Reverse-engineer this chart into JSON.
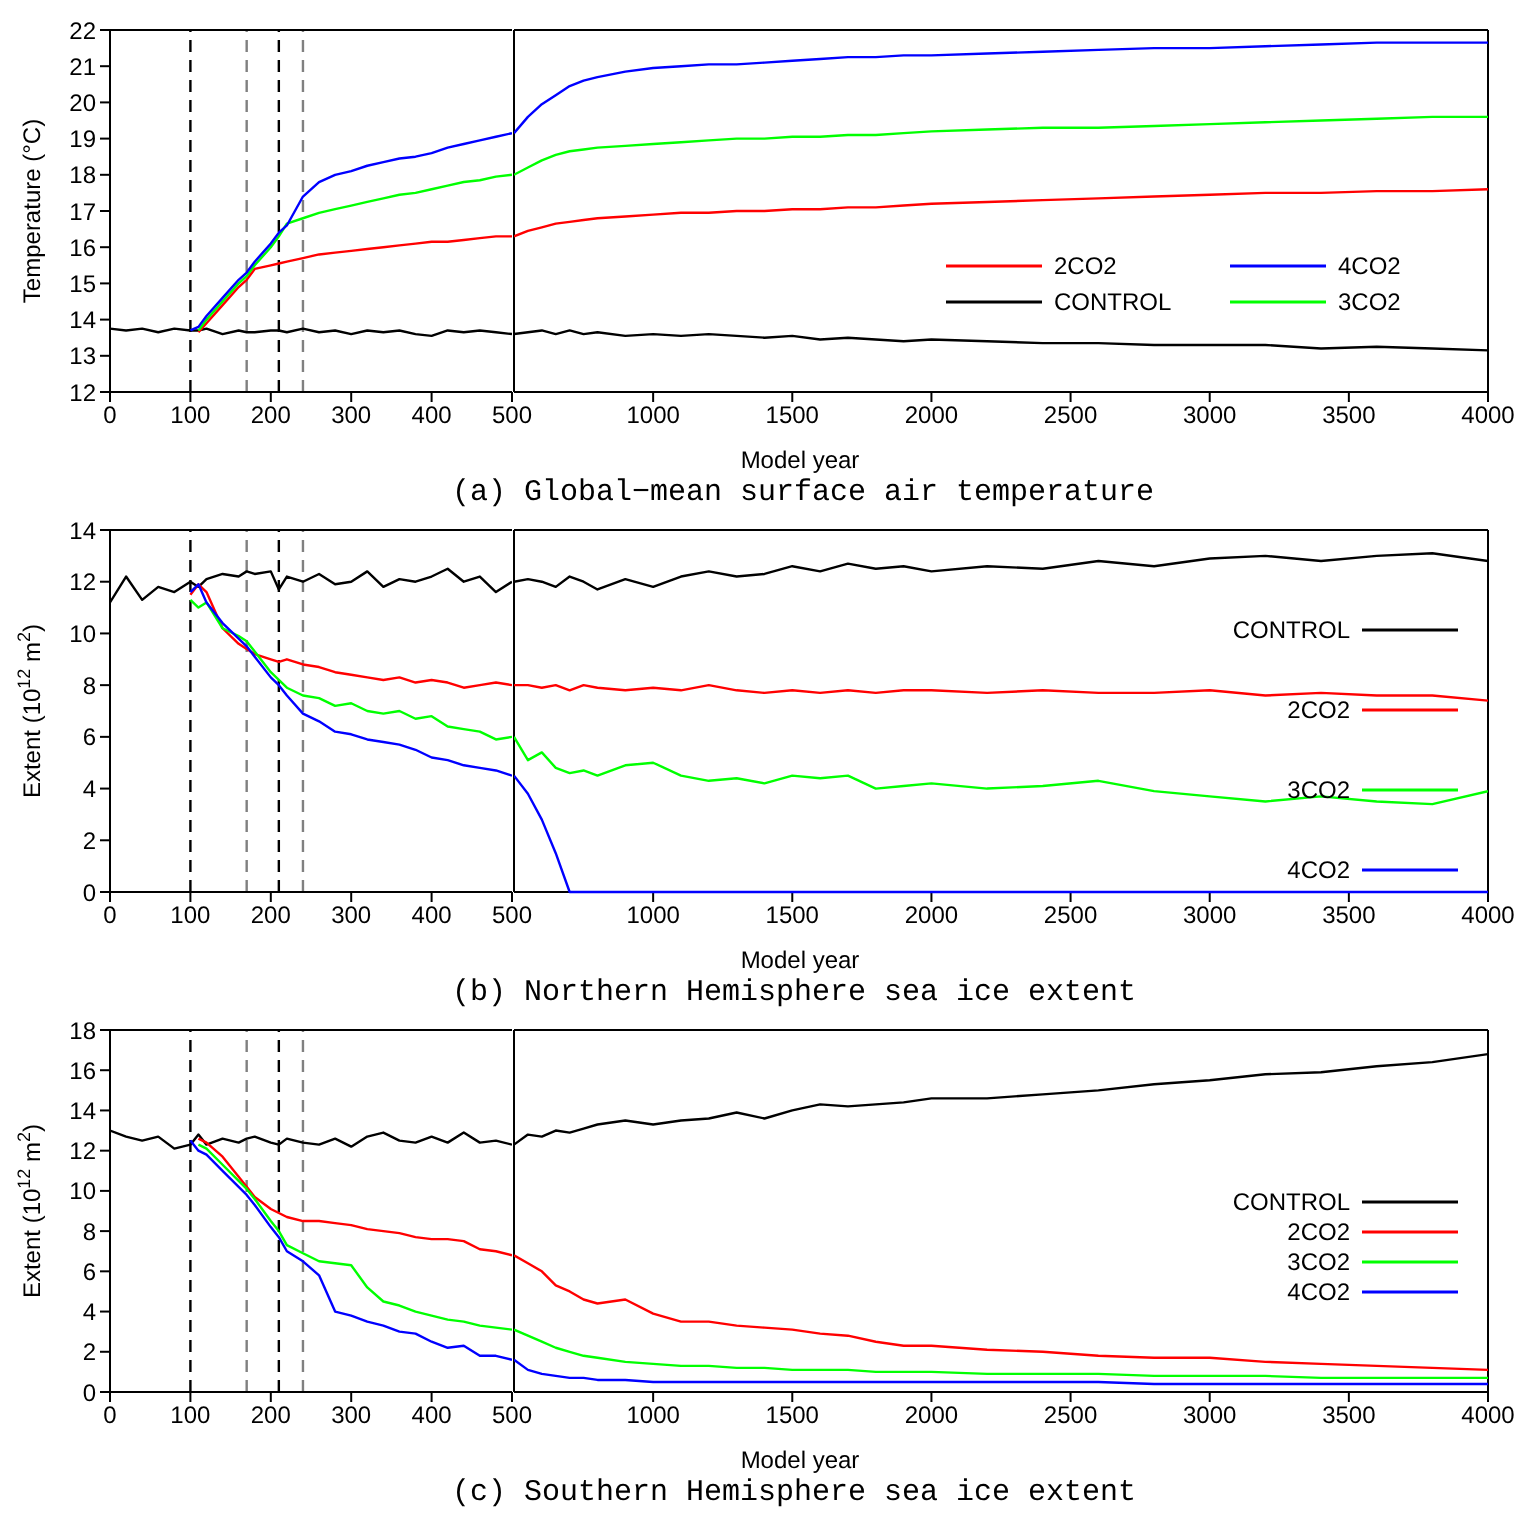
{
  "chart_data": [
    {
      "type": "line",
      "ylabel": "Temperature (°C)",
      "x": [
        0,
        20,
        40,
        60,
        80,
        100,
        110,
        120,
        140,
        160,
        170,
        180,
        200,
        210,
        220,
        240,
        260,
        280,
        300,
        320,
        340,
        360,
        380,
        400,
        420,
        440,
        460,
        480,
        500
      ],
      "xlim": [
        0,
        500
      ],
      "xticks": [
        0,
        100,
        200,
        300,
        400,
        500
      ],
      "ylim": [
        12,
        22
      ],
      "yticks": [
        12,
        13,
        14,
        15,
        16,
        17,
        18,
        19,
        20,
        21,
        22
      ],
      "ref_lines": [
        {
          "axis": "x",
          "value": 100,
          "color": "#000000",
          "line_style": "dashed"
        },
        {
          "axis": "x",
          "value": 170,
          "color": "#808080",
          "line_style": "dashed"
        },
        {
          "axis": "x",
          "value": 210,
          "color": "#000000",
          "line_style": "dashed"
        },
        {
          "axis": "x",
          "value": 240,
          "color": "#808080",
          "line_style": "dashed"
        }
      ],
      "series": [
        {
          "color": "#000000",
          "values": [
            13.75,
            13.7,
            13.75,
            13.65,
            13.75,
            13.7,
            13.7,
            13.75,
            13.6,
            13.7,
            13.65,
            13.65,
            13.7,
            13.7,
            13.65,
            13.75,
            13.65,
            13.7,
            13.6,
            13.7,
            13.65,
            13.7,
            13.6,
            13.55,
            13.7,
            13.65,
            13.7,
            13.65,
            13.6
          ]
        },
        {
          "color": "#ff0000",
          "values": [
            null,
            null,
            null,
            null,
            null,
            null,
            13.65,
            13.9,
            14.4,
            14.9,
            15.1,
            15.4,
            15.5,
            15.55,
            15.6,
            15.7,
            15.8,
            15.85,
            15.9,
            15.95,
            16.0,
            16.05,
            16.1,
            16.15,
            16.15,
            16.2,
            16.25,
            16.3,
            16.3
          ]
        },
        {
          "color": "#00ff00",
          "values": [
            null,
            null,
            null,
            null,
            null,
            null,
            13.7,
            14.0,
            14.5,
            15.0,
            15.2,
            15.5,
            16.0,
            16.3,
            16.65,
            16.8,
            16.95,
            17.05,
            17.15,
            17.25,
            17.35,
            17.45,
            17.5,
            17.6,
            17.7,
            17.8,
            17.85,
            17.95,
            18.0
          ]
        },
        {
          "color": "#0000ff",
          "values": [
            null,
            null,
            null,
            null,
            null,
            13.7,
            13.8,
            14.1,
            14.6,
            15.1,
            15.3,
            15.6,
            16.1,
            16.4,
            16.6,
            17.4,
            17.8,
            18.0,
            18.1,
            18.25,
            18.35,
            18.45,
            18.5,
            18.6,
            18.75,
            18.85,
            18.95,
            19.05,
            19.15
          ]
        }
      ]
    },
    {
      "type": "line",
      "title": "(a) Global−mean surface air temperature",
      "xlabel": "Model year",
      "legend": "right",
      "tick_labels": "x",
      "x": [
        500,
        550,
        600,
        650,
        700,
        750,
        800,
        900,
        1000,
        1100,
        1200,
        1300,
        1400,
        1500,
        1600,
        1700,
        1800,
        1900,
        2000,
        2200,
        2400,
        2600,
        2800,
        3000,
        3200,
        3400,
        3600,
        3800,
        4000
      ],
      "xlim": [
        500,
        4000
      ],
      "xticks": [
        1000,
        1500,
        2000,
        2500,
        3000,
        3500,
        4000
      ],
      "ylim": [
        12,
        22
      ],
      "yticks": [
        12,
        13,
        14,
        15,
        16,
        17,
        18,
        19,
        20,
        21,
        22
      ],
      "series": [
        {
          "name": "2CO2",
          "color": "#ff0000",
          "values": [
            16.3,
            16.45,
            16.55,
            16.65,
            16.7,
            16.75,
            16.8,
            16.85,
            16.9,
            16.95,
            16.95,
            17.0,
            17.0,
            17.05,
            17.05,
            17.1,
            17.1,
            17.15,
            17.2,
            17.25,
            17.3,
            17.35,
            17.4,
            17.45,
            17.5,
            17.5,
            17.55,
            17.55,
            17.6
          ]
        },
        {
          "name": "4CO2",
          "color": "#0000ff",
          "values": [
            19.15,
            19.6,
            19.95,
            20.2,
            20.45,
            20.6,
            20.7,
            20.85,
            20.95,
            21.0,
            21.05,
            21.05,
            21.1,
            21.15,
            21.2,
            21.25,
            21.25,
            21.3,
            21.3,
            21.35,
            21.4,
            21.45,
            21.5,
            21.5,
            21.55,
            21.6,
            21.65,
            21.65,
            21.65
          ]
        },
        {
          "name": "CONTROL",
          "color": "#000000",
          "values": [
            13.6,
            13.65,
            13.7,
            13.6,
            13.7,
            13.6,
            13.65,
            13.55,
            13.6,
            13.55,
            13.6,
            13.55,
            13.5,
            13.55,
            13.45,
            13.5,
            13.45,
            13.4,
            13.45,
            13.4,
            13.35,
            13.35,
            13.3,
            13.3,
            13.3,
            13.2,
            13.25,
            13.2,
            13.15
          ]
        },
        {
          "name": "3CO2",
          "color": "#00ff00",
          "values": [
            18.0,
            18.2,
            18.4,
            18.55,
            18.65,
            18.7,
            18.75,
            18.8,
            18.85,
            18.9,
            18.95,
            19.0,
            19.0,
            19.05,
            19.05,
            19.1,
            19.1,
            19.15,
            19.2,
            19.25,
            19.3,
            19.3,
            19.35,
            19.4,
            19.45,
            19.5,
            19.55,
            19.6,
            19.6
          ]
        }
      ]
    },
    {
      "type": "line",
      "ylabel": "Extent (10$^{12}$ m$^{2}$)",
      "x": [
        0,
        20,
        40,
        60,
        80,
        100,
        110,
        120,
        140,
        160,
        170,
        180,
        200,
        210,
        220,
        240,
        260,
        280,
        300,
        320,
        340,
        360,
        380,
        400,
        420,
        440,
        460,
        480,
        500
      ],
      "xlim": [
        0,
        500
      ],
      "xticks": [
        0,
        100,
        200,
        300,
        400,
        500
      ],
      "ylim": [
        0,
        14
      ],
      "yticks": [
        0,
        2,
        4,
        6,
        8,
        10,
        12,
        14
      ],
      "ref_lines": [
        {
          "axis": "x",
          "value": 100,
          "color": "#000000",
          "line_style": "dashed"
        },
        {
          "axis": "x",
          "value": 170,
          "color": "#808080",
          "line_style": "dashed"
        },
        {
          "axis": "x",
          "value": 210,
          "color": "#000000",
          "line_style": "dashed"
        },
        {
          "axis": "x",
          "value": 240,
          "color": "#808080",
          "line_style": "dashed"
        }
      ],
      "series": [
        {
          "color": "#000000",
          "values": [
            11.2,
            12.2,
            11.3,
            11.8,
            11.6,
            12.0,
            11.8,
            12.1,
            12.3,
            12.2,
            12.4,
            12.3,
            12.4,
            11.7,
            12.2,
            12.0,
            12.3,
            11.9,
            12.0,
            12.4,
            11.8,
            12.1,
            12.0,
            12.2,
            12.5,
            12.0,
            12.2,
            11.6,
            12.0
          ]
        },
        {
          "color": "#ff0000",
          "values": [
            null,
            null,
            null,
            null,
            null,
            11.5,
            11.9,
            11.6,
            10.2,
            9.6,
            9.4,
            9.2,
            9.0,
            8.9,
            9.0,
            8.8,
            8.7,
            8.5,
            8.4,
            8.3,
            8.2,
            8.3,
            8.1,
            8.2,
            8.1,
            7.9,
            8.0,
            8.1,
            8.0
          ]
        },
        {
          "color": "#00ff00",
          "values": [
            null,
            null,
            null,
            null,
            null,
            11.3,
            11.0,
            11.2,
            10.2,
            9.9,
            9.7,
            9.3,
            8.5,
            8.2,
            7.9,
            7.6,
            7.5,
            7.2,
            7.3,
            7.0,
            6.9,
            7.0,
            6.7,
            6.8,
            6.4,
            6.3,
            6.2,
            5.9,
            6.0
          ]
        },
        {
          "color": "#0000ff",
          "values": [
            null,
            null,
            null,
            null,
            null,
            11.6,
            11.9,
            11.2,
            10.4,
            9.8,
            9.5,
            9.1,
            8.3,
            8.0,
            7.6,
            6.9,
            6.6,
            6.2,
            6.1,
            5.9,
            5.8,
            5.7,
            5.5,
            5.2,
            5.1,
            4.9,
            4.8,
            4.7,
            4.5
          ]
        }
      ]
    },
    {
      "type": "line",
      "title": "(b) Northern Hemisphere sea ice extent",
      "xlabel": "Model year",
      "legend": "right",
      "tick_labels": "x",
      "x": [
        500,
        550,
        600,
        650,
        700,
        750,
        800,
        900,
        1000,
        1100,
        1200,
        1300,
        1400,
        1500,
        1600,
        1700,
        1800,
        1900,
        2000,
        2200,
        2400,
        2600,
        2800,
        3000,
        3200,
        3400,
        3600,
        3800,
        4000
      ],
      "xlim": [
        500,
        4000
      ],
      "xticks": [
        1000,
        1500,
        2000,
        2500,
        3000,
        3500,
        4000
      ],
      "ylim": [
        0,
        14
      ],
      "yticks": [
        0,
        2,
        4,
        6,
        8,
        10,
        12,
        14
      ],
      "series": [
        {
          "name": "CONTROL",
          "color": "#000000",
          "values": [
            12.0,
            12.1,
            12.0,
            11.8,
            12.2,
            12.0,
            11.7,
            12.1,
            11.8,
            12.2,
            12.4,
            12.2,
            12.3,
            12.6,
            12.4,
            12.7,
            12.5,
            12.6,
            12.4,
            12.6,
            12.5,
            12.8,
            12.6,
            12.9,
            13.0,
            12.8,
            13.0,
            13.1,
            12.8
          ]
        },
        {
          "name": "2CO2",
          "color": "#ff0000",
          "values": [
            8.0,
            8.0,
            7.9,
            8.0,
            7.8,
            8.0,
            7.9,
            7.8,
            7.9,
            7.8,
            8.0,
            7.8,
            7.7,
            7.8,
            7.7,
            7.8,
            7.7,
            7.8,
            7.8,
            7.7,
            7.8,
            7.7,
            7.7,
            7.8,
            7.6,
            7.7,
            7.6,
            7.6,
            7.4
          ]
        },
        {
          "name": "3CO2",
          "color": "#00ff00",
          "values": [
            6.0,
            5.1,
            5.4,
            4.8,
            4.6,
            4.7,
            4.5,
            4.9,
            5.0,
            4.5,
            4.3,
            4.4,
            4.2,
            4.5,
            4.4,
            4.5,
            4.0,
            4.1,
            4.2,
            4.0,
            4.1,
            4.3,
            3.9,
            3.7,
            3.5,
            3.7,
            3.5,
            3.4,
            3.9
          ]
        },
        {
          "name": "4CO2",
          "color": "#0000ff",
          "values": [
            4.5,
            3.8,
            2.8,
            1.5,
            0,
            0,
            0,
            0,
            0,
            0,
            0,
            0,
            0,
            0,
            0,
            0,
            0,
            0,
            0,
            0,
            0,
            0,
            0,
            0,
            0,
            0,
            0,
            0,
            0
          ]
        }
      ]
    },
    {
      "type": "line",
      "ylabel": "Extent (10$^{12}$ m$^{2}$)",
      "x": [
        0,
        20,
        40,
        60,
        80,
        100,
        110,
        120,
        140,
        160,
        170,
        180,
        200,
        210,
        220,
        240,
        260,
        280,
        300,
        320,
        340,
        360,
        380,
        400,
        420,
        440,
        460,
        480,
        500
      ],
      "xlim": [
        0,
        500
      ],
      "xticks": [
        0,
        100,
        200,
        300,
        400,
        500
      ],
      "ylim": [
        0,
        18
      ],
      "yticks": [
        0,
        2,
        4,
        6,
        8,
        10,
        12,
        14,
        16,
        18
      ],
      "ref_lines": [
        {
          "axis": "x",
          "value": 100,
          "color": "#000000",
          "line_style": "dashed"
        },
        {
          "axis": "x",
          "value": 170,
          "color": "#808080",
          "line_style": "dashed"
        },
        {
          "axis": "x",
          "value": 210,
          "color": "#000000",
          "line_style": "dashed"
        },
        {
          "axis": "x",
          "value": 240,
          "color": "#808080",
          "line_style": "dashed"
        }
      ],
      "series": [
        {
          "color": "#000000",
          "values": [
            13.0,
            12.7,
            12.5,
            12.7,
            12.1,
            12.3,
            12.8,
            12.3,
            12.6,
            12.4,
            12.6,
            12.7,
            12.4,
            12.3,
            12.6,
            12.4,
            12.3,
            12.6,
            12.2,
            12.7,
            12.9,
            12.5,
            12.4,
            12.7,
            12.4,
            12.9,
            12.4,
            12.5,
            12.3
          ]
        },
        {
          "color": "#ff0000",
          "values": [
            null,
            null,
            null,
            null,
            null,
            null,
            12.6,
            12.4,
            11.7,
            10.7,
            10.2,
            9.7,
            9.1,
            8.9,
            8.7,
            8.5,
            8.5,
            8.4,
            8.3,
            8.1,
            8.0,
            7.9,
            7.7,
            7.6,
            7.6,
            7.5,
            7.1,
            7.0,
            6.8
          ]
        },
        {
          "color": "#00ff00",
          "values": [
            null,
            null,
            null,
            null,
            null,
            null,
            12.3,
            12.1,
            11.3,
            10.5,
            10.1,
            9.6,
            8.5,
            8.0,
            7.3,
            6.9,
            6.5,
            6.4,
            6.3,
            5.2,
            4.5,
            4.3,
            4.0,
            3.8,
            3.6,
            3.5,
            3.3,
            3.2,
            3.1
          ]
        },
        {
          "color": "#0000ff",
          "values": [
            null,
            null,
            null,
            null,
            null,
            12.5,
            12.0,
            11.8,
            11.0,
            10.2,
            9.8,
            9.3,
            8.2,
            7.7,
            7.0,
            6.5,
            5.8,
            4.0,
            3.8,
            3.5,
            3.3,
            3.0,
            2.9,
            2.5,
            2.2,
            2.3,
            1.8,
            1.8,
            1.6
          ]
        }
      ]
    },
    {
      "type": "line",
      "title": "(c) Southern Hemisphere sea ice extent",
      "xlabel": "Model year",
      "legend": "right",
      "tick_labels": "x",
      "x": [
        500,
        550,
        600,
        650,
        700,
        750,
        800,
        900,
        1000,
        1100,
        1200,
        1300,
        1400,
        1500,
        1600,
        1700,
        1800,
        1900,
        2000,
        2200,
        2400,
        2600,
        2800,
        3000,
        3200,
        3400,
        3600,
        3800,
        4000
      ],
      "xlim": [
        500,
        4000
      ],
      "xticks": [
        1000,
        1500,
        2000,
        2500,
        3000,
        3500,
        4000
      ],
      "ylim": [
        0,
        18
      ],
      "yticks": [
        0,
        2,
        4,
        6,
        8,
        10,
        12,
        14,
        16,
        18
      ],
      "series": [
        {
          "name": "CONTROL",
          "color": "#000000",
          "values": [
            12.3,
            12.8,
            12.7,
            13.0,
            12.9,
            13.1,
            13.3,
            13.5,
            13.3,
            13.5,
            13.6,
            13.9,
            13.6,
            14.0,
            14.3,
            14.2,
            14.3,
            14.4,
            14.6,
            14.6,
            14.8,
            15.0,
            15.3,
            15.5,
            15.8,
            15.9,
            16.2,
            16.4,
            16.8
          ]
        },
        {
          "name": "2CO2",
          "color": "#ff0000",
          "values": [
            6.8,
            6.4,
            6.0,
            5.3,
            5.0,
            4.6,
            4.4,
            4.6,
            3.9,
            3.5,
            3.5,
            3.3,
            3.2,
            3.1,
            2.9,
            2.8,
            2.5,
            2.3,
            2.3,
            2.1,
            2.0,
            1.8,
            1.7,
            1.7,
            1.5,
            1.4,
            1.3,
            1.2,
            1.1
          ]
        },
        {
          "name": "3CO2",
          "color": "#00ff00",
          "values": [
            3.1,
            2.8,
            2.5,
            2.2,
            2.0,
            1.8,
            1.7,
            1.5,
            1.4,
            1.3,
            1.3,
            1.2,
            1.2,
            1.1,
            1.1,
            1.1,
            1.0,
            1.0,
            1.0,
            0.9,
            0.9,
            0.9,
            0.8,
            0.8,
            0.8,
            0.7,
            0.7,
            0.7,
            0.7
          ]
        },
        {
          "name": "4CO2",
          "color": "#0000ff",
          "values": [
            1.6,
            1.1,
            0.9,
            0.8,
            0.7,
            0.7,
            0.6,
            0.6,
            0.5,
            0.5,
            0.5,
            0.5,
            0.5,
            0.5,
            0.5,
            0.5,
            0.5,
            0.5,
            0.5,
            0.5,
            0.5,
            0.5,
            0.4,
            0.4,
            0.4,
            0.4,
            0.4,
            0.4,
            0.4
          ]
        }
      ]
    }
  ]
}
